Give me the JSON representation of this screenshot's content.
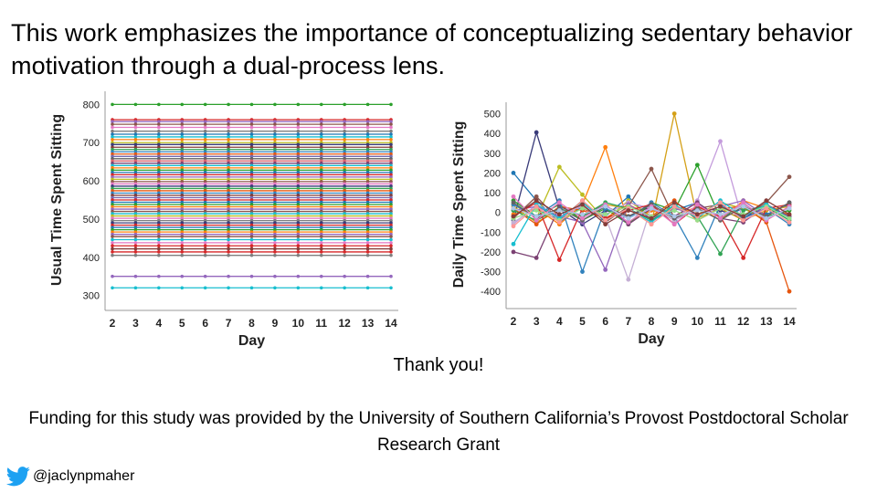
{
  "slide": {
    "title": "This work emphasizes the importance of conceptualizing sedentary behavior motivation through a dual-process lens.",
    "thanks": "Thank you!",
    "funding": "Funding for this study was provided by the University of Southern California’s Provost Postdoctoral Scholar Research Grant",
    "handle": "@jaclynpmaher",
    "handle_icon": "twitter-bird-icon",
    "twitter_color": "#1da1f2"
  },
  "chart_data": [
    {
      "type": "line",
      "title": "",
      "xlabel": "Day",
      "ylabel": "Usual Time Spent Sitting",
      "x": [
        2,
        3,
        4,
        5,
        6,
        7,
        8,
        9,
        10,
        11,
        12,
        13,
        14
      ],
      "yticks": [
        300,
        400,
        500,
        600,
        700,
        800
      ],
      "ylim": [
        280,
        820
      ],
      "grid": false,
      "legend": "none",
      "description_of_series": "one horizontal line per participant (constant across days)",
      "levels": [
        800,
        760,
        755,
        748,
        740,
        730,
        722,
        715,
        708,
        700,
        695,
        688,
        682,
        676,
        670,
        664,
        658,
        652,
        646,
        640,
        634,
        628,
        622,
        616,
        610,
        604,
        598,
        592,
        586,
        580,
        574,
        568,
        562,
        556,
        550,
        544,
        538,
        532,
        526,
        520,
        514,
        508,
        502,
        496,
        490,
        484,
        478,
        472,
        466,
        460,
        454,
        446,
        438,
        430,
        422,
        414,
        405,
        350,
        320
      ],
      "colors": [
        "#2ca02c",
        "#d62728",
        "#9467bd",
        "#8c564b",
        "#e377c2",
        "#7f7f7f",
        "#1f77b4",
        "#17becf",
        "#ff7f0e",
        "#bcbd22",
        "#393b79",
        "#843c39",
        "#31a354",
        "#3182bd",
        "#e6550d",
        "#756bb1",
        "#636363",
        "#d6616b",
        "#7b4173",
        "#17becf",
        "#ff7f0e",
        "#2ca02c",
        "#1f77b4",
        "#d62728",
        "#9467bd",
        "#bcbd22",
        "#8c564b",
        "#e377c2",
        "#393b79",
        "#31a354",
        "#e6550d",
        "#3182bd",
        "#843c39",
        "#756bb1",
        "#d62728",
        "#1f77b4",
        "#2ca02c",
        "#ff7f0e",
        "#9467bd",
        "#8c564b",
        "#17becf",
        "#bcbd22",
        "#e377c2",
        "#7f7f7f",
        "#393b79",
        "#d62728",
        "#1f77b4",
        "#2ca02c",
        "#ff7f0e",
        "#9467bd",
        "#8c564b",
        "#17becf",
        "#e377c2",
        "#d62728",
        "#843c39",
        "#d62728",
        "#7f7f7f",
        "#9467bd",
        "#17becf"
      ]
    },
    {
      "type": "line",
      "title": "",
      "xlabel": "Day",
      "ylabel": "Daily Time Spent Sitting",
      "x": [
        2,
        3,
        4,
        5,
        6,
        7,
        8,
        9,
        10,
        11,
        12,
        13,
        14
      ],
      "yticks": [
        500,
        400,
        300,
        200,
        100,
        0,
        -100,
        -200,
        -300,
        -400
      ],
      "ylim": [
        -450,
        530
      ],
      "grid": false,
      "legend": "none",
      "description_of_series": "one fluctuating line per participant (deviations from usual)",
      "series": [
        {
          "color": "#1f77b4",
          "values": [
            200,
            60,
            -50,
            30,
            -20,
            80,
            -40,
            10,
            50,
            -30,
            20,
            -10,
            40
          ]
        },
        {
          "color": "#393b79",
          "values": [
            -40,
            405,
            20,
            -60,
            10,
            -20,
            30,
            -40,
            20,
            10,
            -30,
            40,
            -20
          ]
        },
        {
          "color": "#bcbd22",
          "values": [
            40,
            -30,
            230,
            90,
            -40,
            60,
            -20,
            30,
            -10,
            50,
            20,
            -40,
            30
          ]
        },
        {
          "color": "#ff7f0e",
          "values": [
            -10,
            20,
            -60,
            40,
            330,
            -50,
            10,
            -20,
            30,
            -40,
            60,
            20,
            -10
          ]
        },
        {
          "color": "#d4a017",
          "values": [
            30,
            -50,
            10,
            -20,
            40,
            20,
            -60,
            500,
            -30,
            20,
            -40,
            10,
            30
          ]
        },
        {
          "color": "#c49cdc",
          "values": [
            -60,
            40,
            -20,
            30,
            -10,
            50,
            20,
            -40,
            60,
            360,
            -50,
            30,
            -20
          ]
        },
        {
          "color": "#2ca02c",
          "values": [
            60,
            -20,
            40,
            -40,
            20,
            -60,
            50,
            10,
            240,
            -30,
            40,
            -20,
            10
          ]
        },
        {
          "color": "#8c564b",
          "values": [
            -30,
            80,
            -40,
            60,
            -50,
            30,
            220,
            -30,
            20,
            40,
            -20,
            50,
            180
          ]
        },
        {
          "color": "#e6550d",
          "values": [
            20,
            -60,
            30,
            10,
            -30,
            40,
            -20,
            60,
            -40,
            20,
            30,
            -50,
            -400
          ]
        },
        {
          "color": "#7b4173",
          "values": [
            -200,
            -230,
            30,
            -20,
            40,
            -60,
            20,
            -20,
            50,
            -30,
            -50,
            40,
            -20
          ]
        },
        {
          "color": "#9467bd",
          "values": [
            10,
            30,
            -20,
            -50,
            -290,
            40,
            -30,
            20,
            -10,
            30,
            60,
            -20,
            50
          ]
        },
        {
          "color": "#3182bd",
          "values": [
            40,
            -20,
            60,
            -300,
            20,
            -30,
            50,
            -20,
            -230,
            40,
            -30,
            20,
            -60
          ]
        },
        {
          "color": "#c5b0d5",
          "values": [
            -50,
            20,
            -30,
            40,
            -20,
            -340,
            30,
            -40,
            20,
            -20,
            40,
            -30,
            20
          ]
        },
        {
          "color": "#31a354",
          "values": [
            10,
            -40,
            20,
            -20,
            50,
            20,
            -40,
            30,
            -20,
            -210,
            10,
            30,
            -40
          ]
        },
        {
          "color": "#d62728",
          "values": [
            -20,
            50,
            -240,
            20,
            -30,
            10,
            40,
            -60,
            30,
            -20,
            -230,
            20,
            40
          ]
        },
        {
          "color": "#17becf",
          "values": [
            -160,
            40,
            -30,
            50,
            -40,
            20,
            -50,
            40,
            -30,
            60,
            -20,
            40,
            -30
          ]
        },
        {
          "color": "#636363",
          "values": [
            50,
            -30,
            20,
            -40,
            30,
            -20,
            40,
            -30,
            20,
            -40,
            30,
            -20,
            50
          ]
        },
        {
          "color": "#98df8a",
          "values": [
            -30,
            10,
            -40,
            20,
            -10,
            30,
            -20,
            10,
            -40,
            20,
            -10,
            30,
            -30
          ]
        },
        {
          "color": "#e377c2",
          "values": [
            80,
            -40,
            50,
            -30,
            40,
            -50,
            30,
            -60,
            40,
            -30,
            50,
            -40,
            30
          ]
        },
        {
          "color": "#ff9896",
          "values": [
            -70,
            30,
            -50,
            60,
            -40,
            20,
            -60,
            30,
            -20,
            50,
            -40,
            20,
            -50
          ]
        },
        {
          "color": "#aec7e8",
          "values": [
            20,
            -20,
            10,
            -10,
            30,
            -30,
            20,
            -20,
            10,
            -10,
            30,
            -30,
            20
          ]
        },
        {
          "color": "#843c39",
          "values": [
            -20,
            60,
            -10,
            40,
            -60,
            10,
            -30,
            50,
            -10,
            30,
            -20,
            60,
            -10
          ]
        }
      ]
    }
  ]
}
